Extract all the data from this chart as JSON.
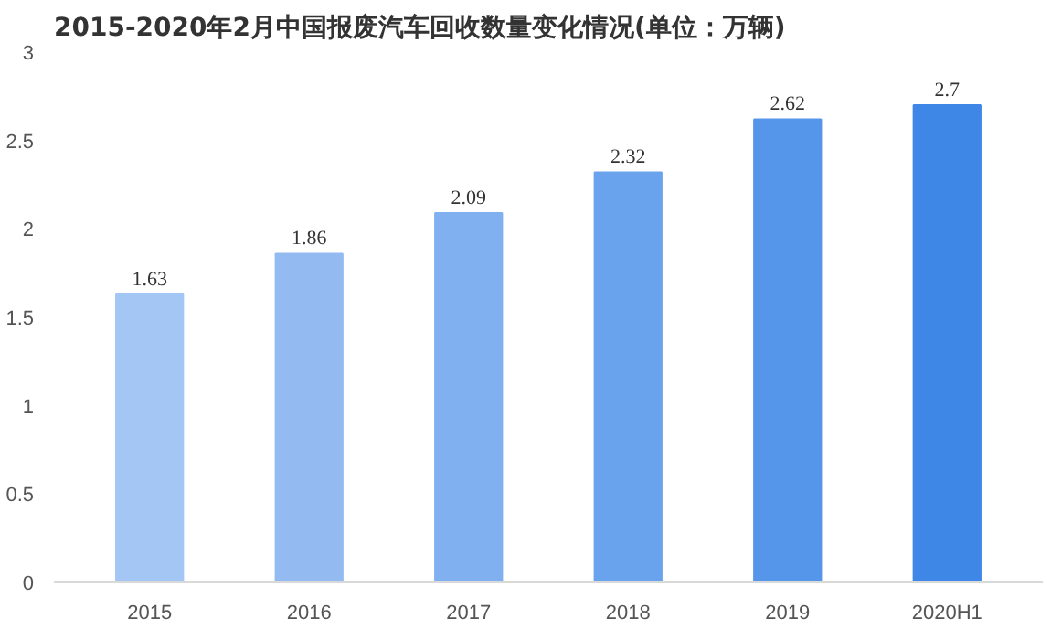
{
  "chart_data": {
    "type": "bar",
    "title": "2015-2020年2月中国报废汽车回收数量变化情况(单位：万辆)",
    "categories": [
      "2015",
      "2016",
      "2017",
      "2018",
      "2019",
      "2020H1"
    ],
    "values": [
      1.63,
      1.86,
      2.09,
      2.32,
      2.62,
      2.7
    ],
    "colors": [
      "#a3c6f5",
      "#93bbf2",
      "#80b0f0",
      "#6aa3ed",
      "#5595ea",
      "#3f87e6"
    ],
    "ylim": [
      0,
      3
    ],
    "yticks": [
      0,
      0.5,
      1,
      1.5,
      2,
      2.5,
      3
    ],
    "data_labels": true,
    "grid": false
  }
}
